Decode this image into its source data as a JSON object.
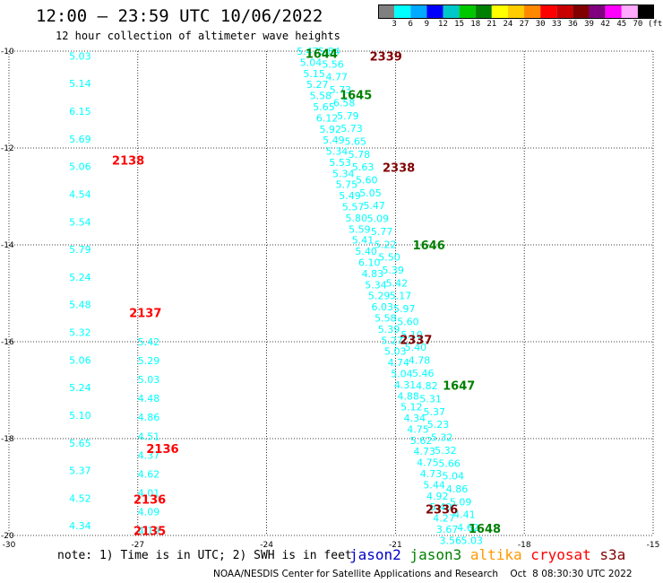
{
  "header": {
    "title": "12:00 – 23:59 UTC 10/06/2022",
    "subtitle": "12 hour collection of altimeter wave heights"
  },
  "colorbar": {
    "unit_label": "(ft)",
    "labels": [
      "3",
      "6",
      "9",
      "12",
      "15",
      "18",
      "21",
      "24",
      "27",
      "30",
      "33",
      "36",
      "39",
      "42",
      "45",
      "70"
    ],
    "colors": [
      "#808080",
      "#00ffff",
      "#00aaff",
      "#0000ff",
      "#00c8c8",
      "#00c800",
      "#008000",
      "#ffff00",
      "#ffcc00",
      "#ff8800",
      "#ff0000",
      "#c80000",
      "#800000",
      "#800080",
      "#ff00ff",
      "#ffaaff",
      "#000000"
    ]
  },
  "chart_data": {
    "type": "scatter",
    "title": "12:00 – 23:59 UTC 10/06/2022",
    "subtitle": "12 hour collection of altimeter wave heights",
    "xlim": [
      -30,
      -15
    ],
    "ylim": [
      -20,
      -10
    ],
    "x_ticks": [
      "-30",
      "-27",
      "-24",
      "-21",
      "-18",
      "-15"
    ],
    "y_ticks": [
      "-10",
      "-12",
      "-14",
      "-16",
      "-18",
      "-20"
    ],
    "grid": true,
    "tracks": [
      {
        "x": -28.6,
        "y_start": -10.1,
        "y_end": -19.8,
        "color": "#00ffff",
        "values": [
          "5.03",
          "5.14",
          "6.15",
          "5.69",
          "5.06",
          "4.54",
          "5.54",
          "5.79",
          "5.24",
          "5.48",
          "5.32",
          "5.06",
          "5.24",
          "5.10",
          "5.65",
          "5.37",
          "4.52",
          "4.34"
        ]
      },
      {
        "x": -27.0,
        "y_start": -16.0,
        "y_end": -19.9,
        "color": "#00ffff",
        "values": [
          "5.42",
          "5.29",
          "5.03",
          "4.48",
          "4.86",
          "4.51",
          "4.37",
          "4.62",
          "4.01",
          "4.09",
          "4.19"
        ]
      },
      {
        "x": -23.3,
        "y_start": -10.0,
        "y_end": -20.1,
        "color": "#00ffff",
        "values": [
          "5.47",
          "5.04",
          "5.15",
          "5.27",
          "5.58",
          "5.65",
          "6.12",
          "5.92",
          "5.49",
          "5.34",
          "5.53",
          "5.34",
          "5.75",
          "5.49",
          "5.57",
          "5.80",
          "5.59",
          "5.41",
          "5.40",
          "6.10",
          "4.83",
          "5.34",
          "5.29",
          "6.03",
          "5.58",
          "5.39",
          "5.27",
          "5.03",
          "4.74",
          "5.04",
          "4.31",
          "4.88",
          "5.12",
          "4.34",
          "4.75",
          "5.62",
          "4.73",
          "4.75",
          "4.73",
          "5.44",
          "4.92",
          "5.40",
          "4.27",
          "3.67",
          "3.56"
        ]
      },
      {
        "x": -22.8,
        "y_start": -10.0,
        "y_end": -20.1,
        "color": "#00ffff",
        "values": [
          "5.84",
          "5.56",
          "4.77",
          "5.73",
          "6.58",
          "5.79",
          "5.73",
          "5.65",
          "5.78",
          "5.63",
          "5.60",
          "5.05",
          "5.47",
          "5.09",
          "5.77",
          "5.22",
          "5.50",
          "5.39",
          "5.42",
          "5.17",
          "5.97",
          "5.60",
          "5.10",
          "5.40",
          "4.78",
          "5.46",
          "4.82",
          "5.31",
          "5.37",
          "5.23",
          "5.32",
          "5.32",
          "5.66",
          "5.04",
          "4.86",
          "5.09",
          "4.41",
          "4.62",
          "5.03"
        ]
      }
    ],
    "pass_labels": [
      {
        "text": "1644",
        "x": -23.1,
        "y": -10.05,
        "color": "#008000"
      },
      {
        "text": "2339",
        "x": -21.6,
        "y": -10.1,
        "color": "#800000"
      },
      {
        "text": "1645",
        "x": -22.3,
        "y": -10.9,
        "color": "#008000"
      },
      {
        "text": "2138",
        "x": -27.6,
        "y": -12.25,
        "color": "#ff0000"
      },
      {
        "text": "2338",
        "x": -21.3,
        "y": -12.4,
        "color": "#800000"
      },
      {
        "text": "1646",
        "x": -20.6,
        "y": -14.0,
        "color": "#008000"
      },
      {
        "text": "2137",
        "x": -27.2,
        "y": -15.4,
        "color": "#ff0000"
      },
      {
        "text": "2337",
        "x": -20.9,
        "y": -15.95,
        "color": "#800000"
      },
      {
        "text": "1647",
        "x": -19.9,
        "y": -16.9,
        "color": "#008000"
      },
      {
        "text": "2136",
        "x": -26.8,
        "y": -18.2,
        "color": "#ff0000"
      },
      {
        "text": "2136",
        "x": -27.1,
        "y": -19.25,
        "color": "#ff0000"
      },
      {
        "text": "2336",
        "x": -20.3,
        "y": -19.45,
        "color": "#800000"
      },
      {
        "text": "1648",
        "x": -19.3,
        "y": -19.85,
        "color": "#008000"
      },
      {
        "text": "2135",
        "x": -27.1,
        "y": -19.9,
        "color": "#ff0000"
      }
    ]
  },
  "note": {
    "text": "note: 1) Time is in UTC; 2) SWH is in feet"
  },
  "satellites": [
    {
      "name": "jason2",
      "color": "#0000c8"
    },
    {
      "name": "jason3",
      "color": "#008000"
    },
    {
      "name": "altika",
      "color": "#ff9900"
    },
    {
      "name": "cryosat",
      "color": "#ff0000"
    },
    {
      "name": "s3a",
      "color": "#800000"
    }
  ],
  "footer": {
    "credit": "NOAA/NESDIS Center for Satellite Applications and Research    Oct  8 08:30:30 UTC 2022"
  }
}
